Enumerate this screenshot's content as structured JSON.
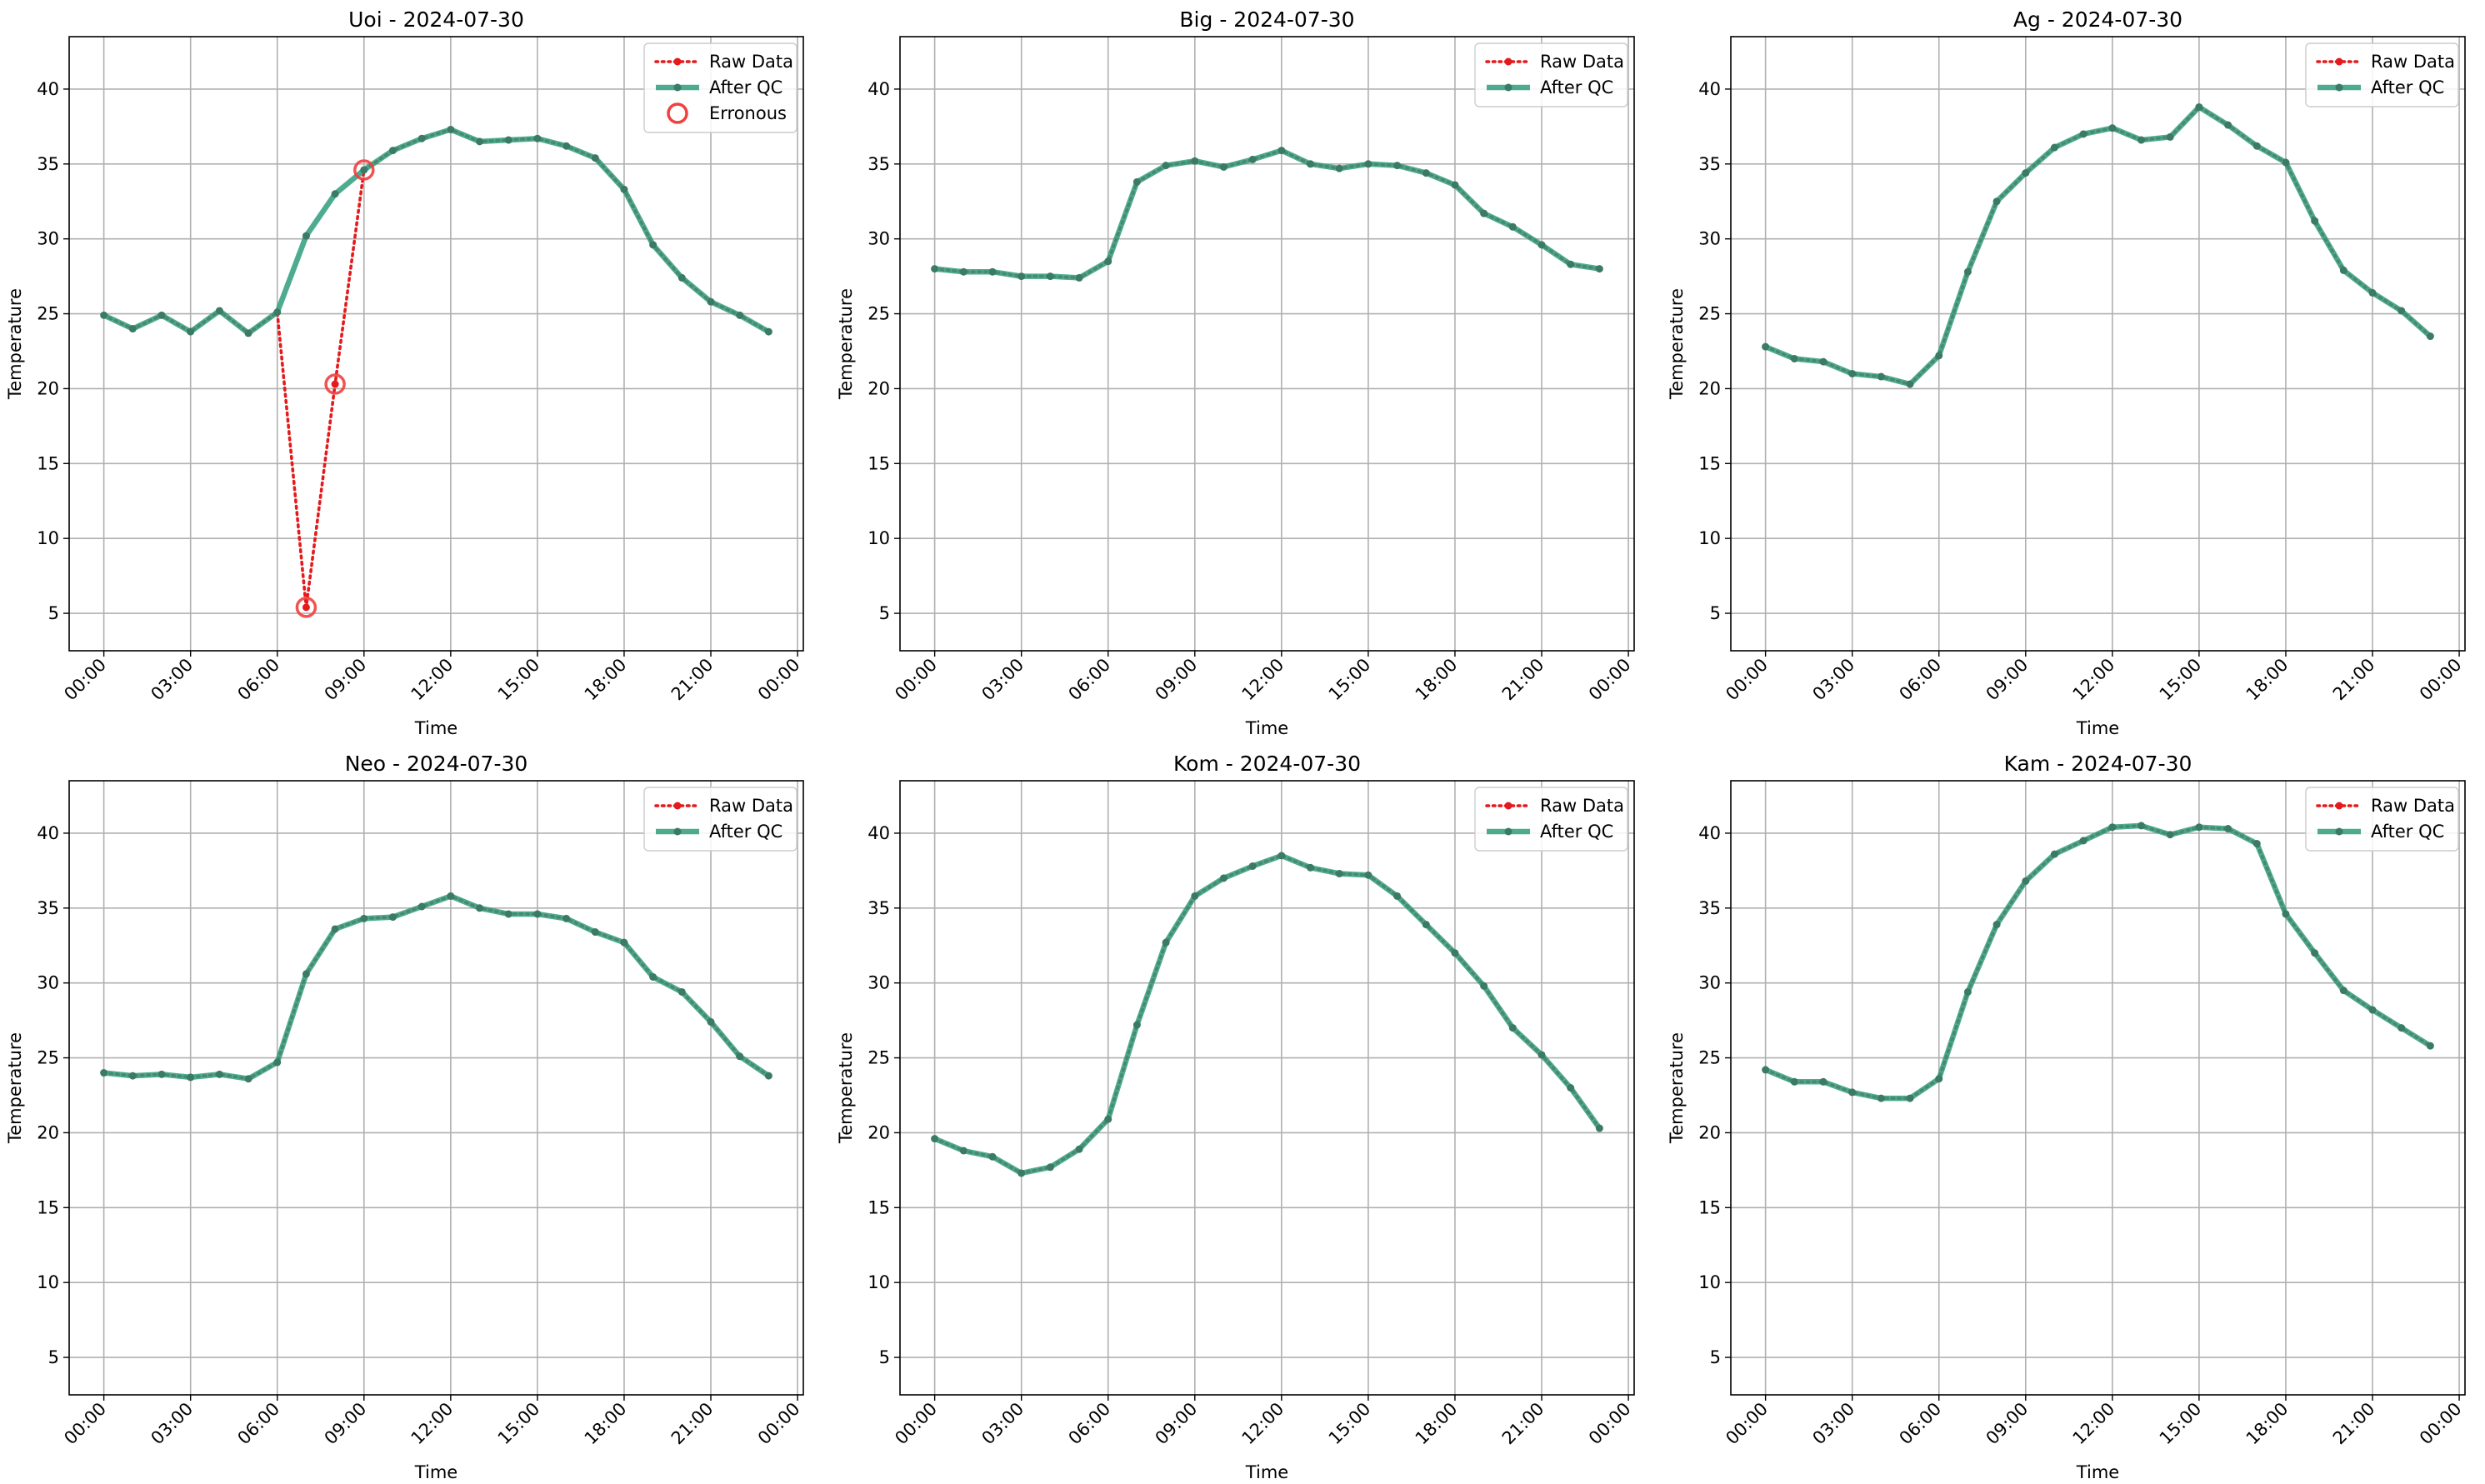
{
  "colors": {
    "raw": "#e41a1c",
    "qc": "#2e9e7d",
    "marker": "#3b7a66",
    "err": "#f04040",
    "grid": "#b0b0b0",
    "frame": "#000000"
  },
  "legend_labels": {
    "raw": "Raw Data",
    "qc": "After QC",
    "err": "Erronous"
  },
  "x_tick_labels": [
    "00:00",
    "03:00",
    "06:00",
    "09:00",
    "12:00",
    "15:00",
    "18:00",
    "21:00",
    "00:00"
  ],
  "chart_data": [
    {
      "type": "line",
      "title": "Uoi - 2024-07-30",
      "xlabel": "Time",
      "ylabel": "Temperature",
      "x_unit": "hour",
      "xlim": [
        -1.2,
        24.2
      ],
      "ylim": [
        2.5,
        43.5
      ],
      "yticks": [
        5,
        10,
        15,
        20,
        25,
        30,
        35,
        40
      ],
      "grid": true,
      "legend": "top-right",
      "series": [
        {
          "name": "Raw Data",
          "hours": [
            0,
            1,
            2,
            3,
            4,
            5,
            6,
            7,
            8,
            9,
            10,
            11,
            12,
            13,
            14,
            15,
            16,
            17,
            18,
            19,
            20,
            21,
            22,
            23
          ],
          "values": [
            24.9,
            24.0,
            24.9,
            23.8,
            25.2,
            23.7,
            25.1,
            5.4,
            20.3,
            34.6,
            35.9,
            36.7,
            37.3,
            36.5,
            36.6,
            36.7,
            36.2,
            35.4,
            33.3,
            29.6,
            27.4,
            25.8,
            24.9,
            23.8
          ]
        },
        {
          "name": "After QC",
          "hours": [
            0,
            1,
            2,
            3,
            4,
            5,
            6,
            7,
            8,
            9,
            10,
            11,
            12,
            13,
            14,
            15,
            16,
            17,
            18,
            19,
            20,
            21,
            22,
            23
          ],
          "values": [
            24.9,
            24.0,
            24.9,
            23.8,
            25.2,
            23.7,
            25.1,
            30.2,
            33.0,
            34.6,
            35.9,
            36.7,
            37.3,
            36.5,
            36.6,
            36.7,
            36.2,
            35.4,
            33.3,
            29.6,
            27.4,
            25.8,
            24.9,
            23.8
          ]
        },
        {
          "name": "Erronous",
          "hours": [
            7,
            8,
            9
          ],
          "values": [
            5.4,
            20.3,
            34.6
          ]
        }
      ]
    },
    {
      "type": "line",
      "title": "Big - 2024-07-30",
      "xlabel": "Time",
      "ylabel": "Temperature",
      "x_unit": "hour",
      "xlim": [
        -1.2,
        24.2
      ],
      "ylim": [
        2.5,
        43.5
      ],
      "yticks": [
        5,
        10,
        15,
        20,
        25,
        30,
        35,
        40
      ],
      "grid": true,
      "legend": "top-right",
      "series": [
        {
          "name": "Raw Data",
          "hours": [
            0,
            1,
            2,
            3,
            4,
            5,
            6,
            7,
            8,
            9,
            10,
            11,
            12,
            13,
            14,
            15,
            16,
            17,
            18,
            19,
            20,
            21,
            22,
            23
          ],
          "values": [
            28.0,
            27.8,
            27.8,
            27.5,
            27.5,
            27.4,
            28.5,
            33.8,
            34.9,
            35.2,
            34.8,
            35.3,
            35.9,
            35.0,
            34.7,
            35.0,
            34.9,
            34.4,
            33.6,
            31.7,
            30.8,
            29.6,
            28.3,
            28.0
          ]
        },
        {
          "name": "After QC",
          "hours": [
            0,
            1,
            2,
            3,
            4,
            5,
            6,
            7,
            8,
            9,
            10,
            11,
            12,
            13,
            14,
            15,
            16,
            17,
            18,
            19,
            20,
            21,
            22,
            23
          ],
          "values": [
            28.0,
            27.8,
            27.8,
            27.5,
            27.5,
            27.4,
            28.5,
            33.8,
            34.9,
            35.2,
            34.8,
            35.3,
            35.9,
            35.0,
            34.7,
            35.0,
            34.9,
            34.4,
            33.6,
            31.7,
            30.8,
            29.6,
            28.3,
            28.0
          ]
        }
      ]
    },
    {
      "type": "line",
      "title": "Ag - 2024-07-30",
      "xlabel": "Time",
      "ylabel": "Temperature",
      "x_unit": "hour",
      "xlim": [
        -1.2,
        24.2
      ],
      "ylim": [
        2.5,
        43.5
      ],
      "yticks": [
        5,
        10,
        15,
        20,
        25,
        30,
        35,
        40
      ],
      "grid": true,
      "legend": "top-right",
      "series": [
        {
          "name": "Raw Data",
          "hours": [
            0,
            1,
            2,
            3,
            4,
            5,
            6,
            7,
            8,
            9,
            10,
            11,
            12,
            13,
            14,
            15,
            16,
            17,
            18,
            19,
            20,
            21,
            22,
            23
          ],
          "values": [
            22.8,
            22.0,
            21.8,
            21.0,
            20.8,
            20.3,
            22.2,
            27.8,
            32.5,
            34.4,
            36.1,
            37.0,
            37.4,
            36.6,
            36.8,
            38.8,
            37.6,
            36.2,
            35.1,
            31.2,
            27.9,
            26.4,
            25.2,
            23.5
          ]
        },
        {
          "name": "After QC",
          "hours": [
            0,
            1,
            2,
            3,
            4,
            5,
            6,
            7,
            8,
            9,
            10,
            11,
            12,
            13,
            14,
            15,
            16,
            17,
            18,
            19,
            20,
            21,
            22,
            23
          ],
          "values": [
            22.8,
            22.0,
            21.8,
            21.0,
            20.8,
            20.3,
            22.2,
            27.8,
            32.5,
            34.4,
            36.1,
            37.0,
            37.4,
            36.6,
            36.8,
            38.8,
            37.6,
            36.2,
            35.1,
            31.2,
            27.9,
            26.4,
            25.2,
            23.5
          ]
        }
      ]
    },
    {
      "type": "line",
      "title": "Neo - 2024-07-30",
      "xlabel": "Time",
      "ylabel": "Temperature",
      "x_unit": "hour",
      "xlim": [
        -1.2,
        24.2
      ],
      "ylim": [
        2.5,
        43.5
      ],
      "yticks": [
        5,
        10,
        15,
        20,
        25,
        30,
        35,
        40
      ],
      "grid": true,
      "legend": "top-right",
      "series": [
        {
          "name": "Raw Data",
          "hours": [
            0,
            1,
            2,
            3,
            4,
            5,
            6,
            7,
            8,
            9,
            10,
            11,
            12,
            13,
            14,
            15,
            16,
            17,
            18,
            19,
            20,
            21,
            22,
            23
          ],
          "values": [
            24.0,
            23.8,
            23.9,
            23.7,
            23.9,
            23.6,
            24.7,
            30.6,
            33.6,
            34.3,
            34.4,
            35.1,
            35.8,
            35.0,
            34.6,
            34.6,
            34.3,
            33.4,
            32.7,
            30.4,
            29.4,
            27.4,
            25.1,
            23.8
          ]
        },
        {
          "name": "After QC",
          "hours": [
            0,
            1,
            2,
            3,
            4,
            5,
            6,
            7,
            8,
            9,
            10,
            11,
            12,
            13,
            14,
            15,
            16,
            17,
            18,
            19,
            20,
            21,
            22,
            23
          ],
          "values": [
            24.0,
            23.8,
            23.9,
            23.7,
            23.9,
            23.6,
            24.7,
            30.6,
            33.6,
            34.3,
            34.4,
            35.1,
            35.8,
            35.0,
            34.6,
            34.6,
            34.3,
            33.4,
            32.7,
            30.4,
            29.4,
            27.4,
            25.1,
            23.8
          ]
        }
      ]
    },
    {
      "type": "line",
      "title": "Kom - 2024-07-30",
      "xlabel": "Time",
      "ylabel": "Temperature",
      "x_unit": "hour",
      "xlim": [
        -1.2,
        24.2
      ],
      "ylim": [
        2.5,
        43.5
      ],
      "yticks": [
        5,
        10,
        15,
        20,
        25,
        30,
        35,
        40
      ],
      "grid": true,
      "legend": "top-right",
      "series": [
        {
          "name": "Raw Data",
          "hours": [
            0,
            1,
            2,
            3,
            4,
            5,
            6,
            7,
            8,
            9,
            10,
            11,
            12,
            13,
            14,
            15,
            16,
            17,
            18,
            19,
            20,
            21,
            22,
            23
          ],
          "values": [
            19.6,
            18.8,
            18.4,
            17.3,
            17.7,
            18.9,
            20.9,
            27.2,
            32.7,
            35.8,
            37.0,
            37.8,
            38.5,
            37.7,
            37.3,
            37.2,
            35.8,
            33.9,
            32.0,
            29.8,
            27.0,
            25.2,
            23.0,
            20.3
          ]
        },
        {
          "name": "After QC",
          "hours": [
            0,
            1,
            2,
            3,
            4,
            5,
            6,
            7,
            8,
            9,
            10,
            11,
            12,
            13,
            14,
            15,
            16,
            17,
            18,
            19,
            20,
            21,
            22,
            23
          ],
          "values": [
            19.6,
            18.8,
            18.4,
            17.3,
            17.7,
            18.9,
            20.9,
            27.2,
            32.7,
            35.8,
            37.0,
            37.8,
            38.5,
            37.7,
            37.3,
            37.2,
            35.8,
            33.9,
            32.0,
            29.8,
            27.0,
            25.2,
            23.0,
            20.3
          ]
        }
      ]
    },
    {
      "type": "line",
      "title": "Kam - 2024-07-30",
      "xlabel": "Time",
      "ylabel": "Temperature",
      "x_unit": "hour",
      "xlim": [
        -1.2,
        24.2
      ],
      "ylim": [
        2.5,
        43.5
      ],
      "yticks": [
        5,
        10,
        15,
        20,
        25,
        30,
        35,
        40
      ],
      "grid": true,
      "legend": "top-right",
      "series": [
        {
          "name": "Raw Data",
          "hours": [
            0,
            1,
            2,
            3,
            4,
            5,
            6,
            7,
            8,
            9,
            10,
            11,
            12,
            13,
            14,
            15,
            16,
            17,
            18,
            19,
            20,
            21,
            22,
            23
          ],
          "values": [
            24.2,
            23.4,
            23.4,
            22.7,
            22.3,
            22.3,
            23.6,
            29.4,
            33.9,
            36.8,
            38.6,
            39.5,
            40.4,
            40.5,
            39.9,
            40.4,
            40.3,
            39.3,
            34.6,
            32.0,
            29.5,
            28.2,
            27.0,
            25.8
          ]
        },
        {
          "name": "After QC",
          "hours": [
            0,
            1,
            2,
            3,
            4,
            5,
            6,
            7,
            8,
            9,
            10,
            11,
            12,
            13,
            14,
            15,
            16,
            17,
            18,
            19,
            20,
            21,
            22,
            23
          ],
          "values": [
            24.2,
            23.4,
            23.4,
            22.7,
            22.3,
            22.3,
            23.6,
            29.4,
            33.9,
            36.8,
            38.6,
            39.5,
            40.4,
            40.5,
            39.9,
            40.4,
            40.3,
            39.3,
            34.6,
            32.0,
            29.5,
            28.2,
            27.0,
            25.8
          ]
        }
      ]
    }
  ]
}
